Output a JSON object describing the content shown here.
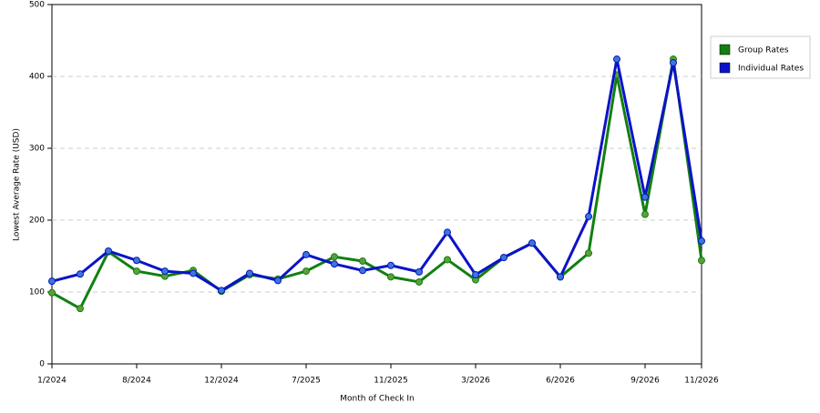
{
  "chart_data": {
    "type": "line",
    "x_label": "Month of Check In",
    "y_label": "Lowest Average Rate (USD)",
    "categories": [
      "1/2024",
      null,
      null,
      "8/2024",
      null,
      null,
      "12/2024",
      null,
      null,
      "7/2025",
      null,
      null,
      "11/2025",
      null,
      null,
      "3/2026",
      null,
      null,
      "6/2026",
      null,
      null,
      "9/2026",
      null,
      "11/2026"
    ],
    "series": [
      {
        "name": "Group Rates",
        "color": "#118011",
        "marker": "#5e9f3a",
        "values": [
          99,
          77,
          156,
          129,
          122,
          130,
          101,
          124,
          118,
          129,
          149,
          143,
          121,
          114,
          145,
          117,
          148,
          168,
          121,
          154,
          402,
          208,
          424,
          144
        ]
      },
      {
        "name": "Individual Rates",
        "color": "#0b13c8",
        "marker": "#3a78d6",
        "values": [
          115,
          125,
          157,
          144,
          129,
          126,
          102,
          126,
          116,
          152,
          139,
          130,
          137,
          128,
          183,
          124,
          148,
          168,
          121,
          205,
          424,
          232,
          419,
          171
        ]
      }
    ],
    "ylim": [
      0,
      500
    ],
    "yticks": [
      0,
      100,
      200,
      300,
      400,
      500
    ],
    "grid": true,
    "legend": "top-right"
  }
}
